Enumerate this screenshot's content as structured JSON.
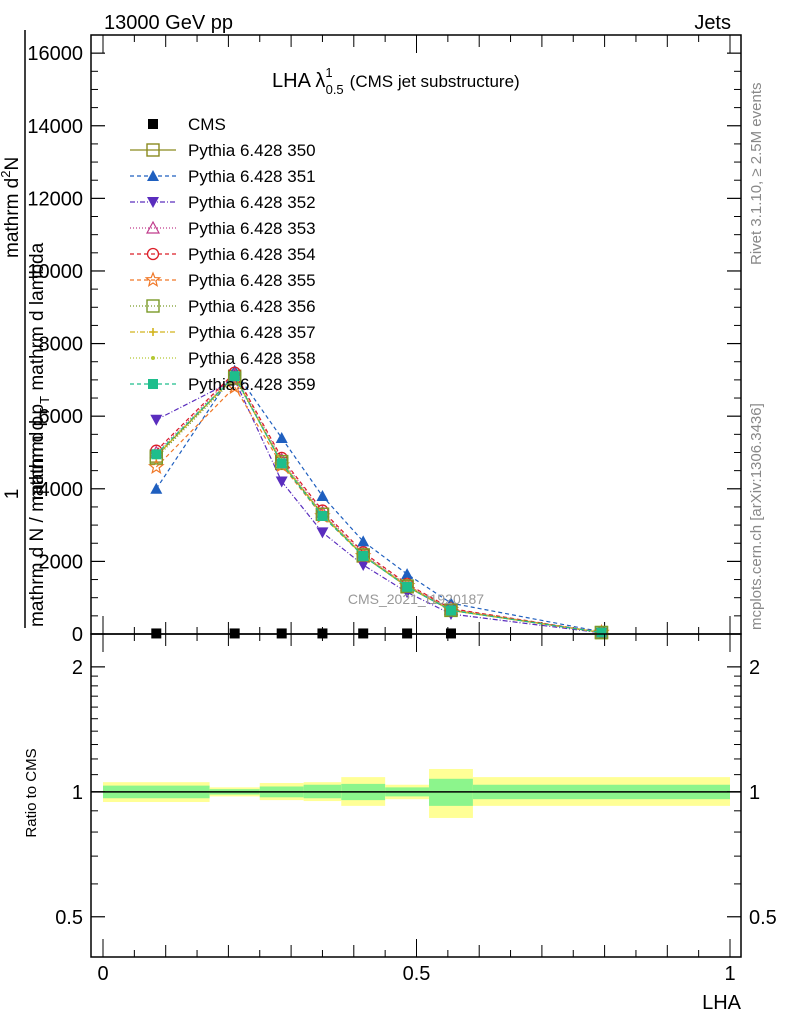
{
  "header": {
    "left": "13000 GeV pp",
    "right": "Jets"
  },
  "side_labels": {
    "rivet": "Rivet 3.1.10, ≥ 2.5M events",
    "site": "mcplots.cern.ch [arXiv:1306.3436]"
  },
  "watermark": "CMS_2021_I1920187",
  "title": {
    "main": "LHA λ",
    "sup": "1",
    "sub": "0.5",
    "suffix": "(CMS jet substructure)"
  },
  "y_label_top": {
    "one": "1",
    "denominator": "mathrm d N / mathrm d p",
    "denominator_sub": "T",
    "numerator": "mathrm d",
    "numerator_sup": "2",
    "numerator_rest": "N",
    "numerator_line2": "mathrm d p",
    "numerator_line2_sub": "T",
    "numerator_line2_rest": " mathrm d lambda"
  },
  "chart_data": [
    {
      "type": "line",
      "panel": "main",
      "xlabel": "LHA",
      "ylim": [
        0,
        16500
      ],
      "xlim": [
        0,
        1
      ],
      "y_ticks": [
        0,
        2000,
        4000,
        6000,
        8000,
        10000,
        12000,
        14000,
        16000
      ],
      "y_tick_labels": [
        "0",
        "2000",
        "4000",
        "6000",
        "8000",
        "10000",
        "12000",
        "14000",
        "16000"
      ],
      "x": [
        0.085,
        0.21,
        0.285,
        0.35,
        0.415,
        0.485,
        0.555,
        0.795
      ],
      "legend_position": "top-left",
      "series": [
        {
          "name": "CMS",
          "color": "#000000",
          "marker": "square-filled",
          "dash": "none",
          "values": [
            15,
            15,
            15,
            15,
            15,
            15,
            15,
            15
          ]
        },
        {
          "name": "Pythia 6.428 350",
          "color": "#8a8a1e",
          "marker": "square-open",
          "dash": "solid",
          "values": [
            4900,
            7100,
            4700,
            3300,
            2150,
            1300,
            650,
            40
          ]
        },
        {
          "name": "Pythia 6.428 351",
          "color": "#1f5fbf",
          "marker": "triangle-up-filled",
          "dash": "4,3",
          "values": [
            4000,
            7250,
            5400,
            3800,
            2550,
            1650,
            850,
            60
          ]
        },
        {
          "name": "Pythia 6.428 352",
          "color": "#5a2dbe",
          "marker": "triangle-down-filled",
          "dash": "5,2,1,2",
          "values": [
            5900,
            7000,
            4200,
            2800,
            1900,
            1150,
            550,
            30
          ]
        },
        {
          "name": "Pythia 6.428 353",
          "color": "#c03c8c",
          "marker": "triangle-up-open",
          "dash": "1,2",
          "values": [
            5000,
            7150,
            4800,
            3350,
            2200,
            1350,
            680,
            40
          ]
        },
        {
          "name": "Pythia 6.428 354",
          "color": "#dc1e28",
          "marker": "circle-open",
          "dash": "4,3",
          "values": [
            5050,
            7200,
            4850,
            3400,
            2250,
            1380,
            700,
            40
          ]
        },
        {
          "name": "Pythia 6.428 355",
          "color": "#f07828",
          "marker": "star-open",
          "dash": "4,3",
          "values": [
            4600,
            6800,
            4650,
            3250,
            2150,
            1330,
            670,
            40
          ]
        },
        {
          "name": "Pythia 6.428 356",
          "color": "#7a9a28",
          "marker": "square-open",
          "dash": "1,2",
          "values": [
            4850,
            7050,
            4750,
            3300,
            2180,
            1320,
            660,
            40
          ]
        },
        {
          "name": "Pythia 6.428 357",
          "color": "#d2b41e",
          "marker": "plus-dot",
          "dash": "5,2,1,2",
          "values": [
            4900,
            7100,
            4720,
            3280,
            2160,
            1310,
            650,
            40
          ]
        },
        {
          "name": "Pythia 6.428 358",
          "color": "#b4c832",
          "marker": "dot",
          "dash": "1,2",
          "values": [
            4950,
            7120,
            4740,
            3290,
            2170,
            1315,
            655,
            40
          ]
        },
        {
          "name": "Pythia 6.428 359",
          "color": "#1ebe8c",
          "marker": "square-filled",
          "dash": "4,3",
          "values": [
            4950,
            7100,
            4700,
            3250,
            2150,
            1300,
            650,
            40
          ]
        }
      ]
    },
    {
      "type": "area",
      "panel": "ratio",
      "ylabel": "Ratio to CMS",
      "xlabel": "LHA",
      "xlim": [
        0,
        1
      ],
      "y_scale": "log",
      "ylim": [
        0.4,
        2.4
      ],
      "y_ticks": [
        0.5,
        1,
        2
      ],
      "y_tick_labels": [
        "0.5",
        "1",
        "2"
      ],
      "x_ticks": [
        0,
        0.5,
        1
      ],
      "x_tick_labels": [
        "0",
        "0.5",
        "1"
      ],
      "bins": [
        {
          "x_lo": 0.0,
          "x_hi": 0.17,
          "inner_lo": 0.965,
          "inner_hi": 1.035,
          "outer_lo": 0.945,
          "outer_hi": 1.055
        },
        {
          "x_lo": 0.17,
          "x_hi": 0.25,
          "inner_lo": 0.985,
          "inner_hi": 1.015,
          "outer_lo": 0.975,
          "outer_hi": 1.025
        },
        {
          "x_lo": 0.25,
          "x_hi": 0.32,
          "inner_lo": 0.97,
          "inner_hi": 1.03,
          "outer_lo": 0.955,
          "outer_hi": 1.05
        },
        {
          "x_lo": 0.32,
          "x_hi": 0.38,
          "inner_lo": 0.965,
          "inner_hi": 1.04,
          "outer_lo": 0.95,
          "outer_hi": 1.055
        },
        {
          "x_lo": 0.38,
          "x_hi": 0.45,
          "inner_lo": 0.955,
          "inner_hi": 1.045,
          "outer_lo": 0.925,
          "outer_hi": 1.085
        },
        {
          "x_lo": 0.45,
          "x_hi": 0.52,
          "inner_lo": 0.975,
          "inner_hi": 1.025,
          "outer_lo": 0.96,
          "outer_hi": 1.04
        },
        {
          "x_lo": 0.52,
          "x_hi": 0.59,
          "inner_lo": 0.925,
          "inner_hi": 1.075,
          "outer_lo": 0.865,
          "outer_hi": 1.135
        },
        {
          "x_lo": 0.59,
          "x_hi": 1.0,
          "inner_lo": 0.96,
          "inner_hi": 1.04,
          "outer_lo": 0.925,
          "outer_hi": 1.085
        }
      ],
      "band_colors": {
        "inner": "#8cf58c",
        "outer": "#ffff96"
      }
    }
  ]
}
